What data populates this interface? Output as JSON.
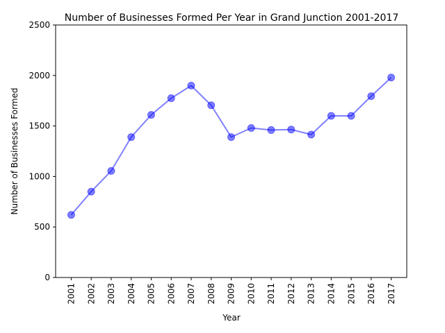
{
  "chart_data": {
    "type": "line",
    "title": "Number of Businesses Formed Per Year in Grand Junction 2001-2017",
    "xlabel": "Year",
    "ylabel": "Number of Businesses Formed",
    "categories": [
      "2001",
      "2002",
      "2003",
      "2004",
      "2005",
      "2006",
      "2007",
      "2008",
      "2009",
      "2010",
      "2011",
      "2012",
      "2013",
      "2014",
      "2015",
      "2016",
      "2017"
    ],
    "values": [
      620,
      850,
      1055,
      1390,
      1610,
      1775,
      1900,
      1705,
      1390,
      1480,
      1460,
      1465,
      1415,
      1600,
      1600,
      1795,
      1980
    ],
    "ylim": [
      0,
      2500
    ],
    "yticks": [
      0,
      500,
      1000,
      1500,
      2000,
      2500
    ],
    "grid": false,
    "colors": {
      "line": "#0000ff",
      "marker": "#0000ff"
    }
  }
}
